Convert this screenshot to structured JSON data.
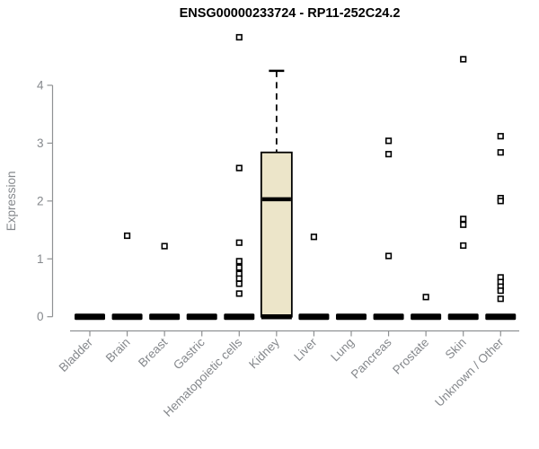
{
  "title": "ENSG00000233724 - RP11-252C24.2",
  "colors": {
    "title_text": "#000000",
    "axis_line": "#8f9193",
    "axis_text": "#85888c",
    "box_fill": "#ece5c9",
    "box_stroke": "#000000",
    "marker_stroke": "#000000",
    "marker_fill": "#ffffff"
  },
  "chart_data": {
    "type": "boxplot",
    "title": "ENSG00000233724 - RP11-252C24.2",
    "xlabel": "",
    "ylabel": "Expression",
    "ylim": [
      0,
      4.9
    ],
    "yticks": [
      "0",
      "1",
      "2",
      "3",
      "4"
    ],
    "grid": false,
    "legend": "none",
    "categories": [
      "Bladder",
      "Brain",
      "Breast",
      "Gastric",
      "Hematopoietic cells",
      "Kidney",
      "Liver",
      "Lung",
      "Pancreas",
      "Prostate",
      "Skin",
      "Unknown / Other"
    ],
    "boxes": [
      {
        "category": "Bladder",
        "q1": 0,
        "median": 0,
        "q3": 0,
        "whisker_low": 0,
        "whisker_high": 0,
        "outliers": []
      },
      {
        "category": "Brain",
        "q1": 0,
        "median": 0,
        "q3": 0,
        "whisker_low": 0,
        "whisker_high": 0,
        "outliers": [
          1.4
        ]
      },
      {
        "category": "Breast",
        "q1": 0,
        "median": 0,
        "q3": 0,
        "whisker_low": 0,
        "whisker_high": 0,
        "outliers": [
          1.22
        ]
      },
      {
        "category": "Gastric",
        "q1": 0,
        "median": 0,
        "q3": 0,
        "whisker_low": 0,
        "whisker_high": 0,
        "outliers": []
      },
      {
        "category": "Hematopoietic cells",
        "q1": 0,
        "median": 0,
        "q3": 0,
        "whisker_low": 0,
        "whisker_high": 0,
        "outliers": [
          4.83,
          2.57,
          1.28,
          0.96,
          0.85,
          0.74,
          0.66,
          0.57,
          0.4
        ]
      },
      {
        "category": "Kidney",
        "q1": 0,
        "median": 2.03,
        "q3": 2.84,
        "whisker_low": 0,
        "whisker_high": 4.25,
        "outliers": []
      },
      {
        "category": "Liver",
        "q1": 0,
        "median": 0,
        "q3": 0,
        "whisker_low": 0,
        "whisker_high": 0,
        "outliers": [
          1.38
        ]
      },
      {
        "category": "Lung",
        "q1": 0,
        "median": 0,
        "q3": 0,
        "whisker_low": 0,
        "whisker_high": 0,
        "outliers": []
      },
      {
        "category": "Pancreas",
        "q1": 0,
        "median": 0,
        "q3": 0,
        "whisker_low": 0,
        "whisker_high": 0,
        "outliers": [
          3.04,
          2.81,
          1.05
        ]
      },
      {
        "category": "Prostate",
        "q1": 0,
        "median": 0,
        "q3": 0,
        "whisker_low": 0,
        "whisker_high": 0,
        "outliers": [
          0.34
        ]
      },
      {
        "category": "Skin",
        "q1": 0,
        "median": 0,
        "q3": 0,
        "whisker_low": 0,
        "whisker_high": 0,
        "outliers": [
          4.45,
          1.69,
          1.59,
          1.23
        ]
      },
      {
        "category": "Unknown / Other",
        "q1": 0,
        "median": 0,
        "q3": 0,
        "whisker_low": 0,
        "whisker_high": 0,
        "outliers": [
          3.12,
          2.84,
          2.05,
          2.0,
          0.68,
          0.6,
          0.52,
          0.45,
          0.31
        ]
      }
    ]
  }
}
